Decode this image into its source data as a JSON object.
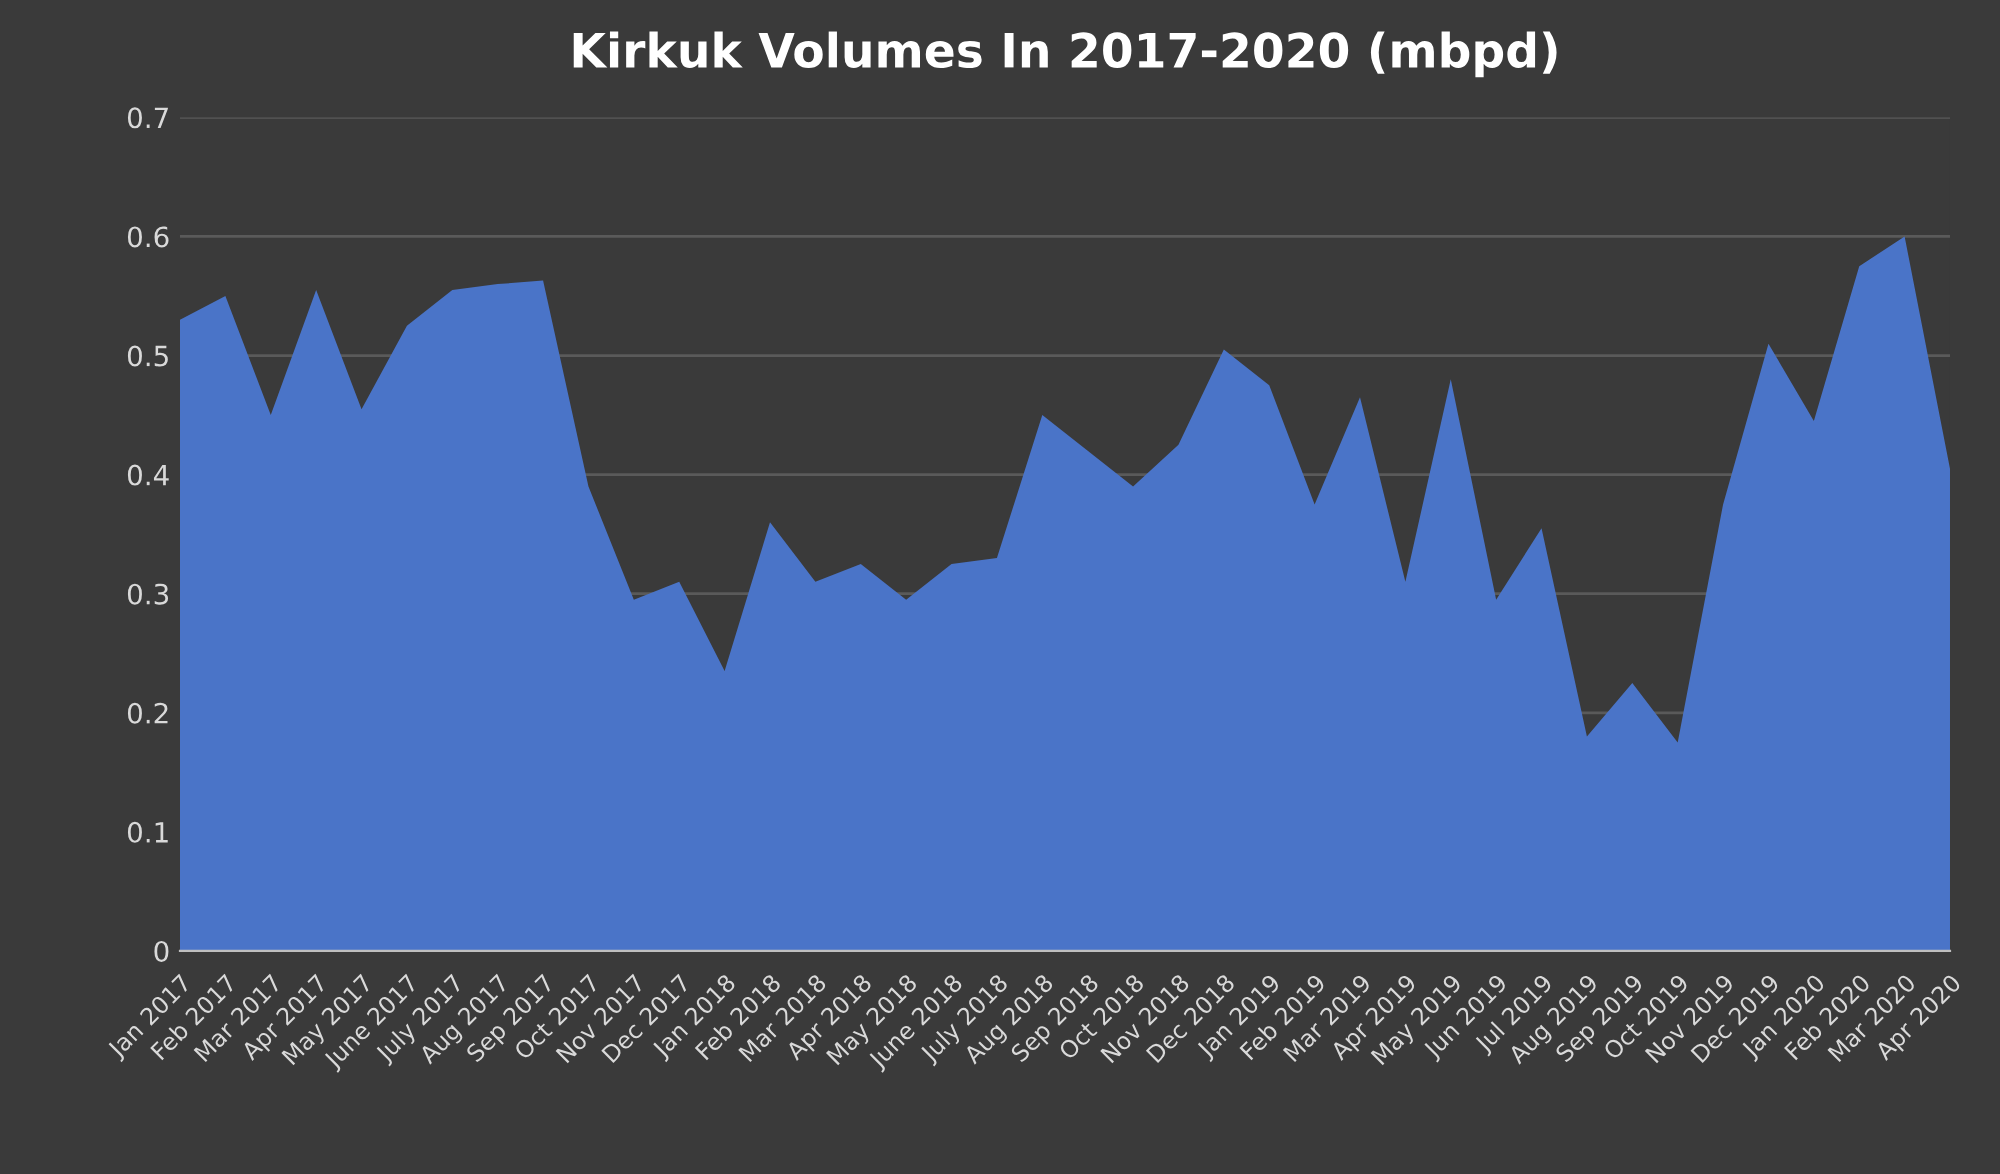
{
  "chart_data": {
    "type": "area",
    "title": "Kirkuk Volumes In 2017-2020 (mbpd)",
    "categories": [
      "Jan 2017",
      "Feb 2017",
      "Mar 2017",
      "Apr 2017",
      "May 2017",
      "June 2017",
      "July 2017",
      "Aug 2017",
      "Sep 2017",
      "Oct 2017",
      "Nov 2017",
      "Dec 2017",
      "Jan 2018",
      "Feb 2018",
      "Mar 2018",
      "Apr 2018",
      "May 2018",
      "June 2018",
      "July 2018",
      "Aug 2018",
      "Sep 2018",
      "Oct 2018",
      "Nov 2018",
      "Dec 2018",
      "Jan 2019",
      "Feb 2019",
      "Mar 2019",
      "Apr 2019",
      "May 2019",
      "Jun 2019",
      "Jul 2019",
      "Aug 2019",
      "Sep 2019",
      "Oct 2019",
      "Nov 2019",
      "Dec 2019",
      "Jan 2020",
      "Feb 2020",
      "Mar 2020",
      "Apr 2020"
    ],
    "series": [
      {
        "color": "#4a74c8",
        "values": [
          0.53,
          0.55,
          0.45,
          0.555,
          0.455,
          0.525,
          0.555,
          0.56,
          0.563,
          0.39,
          0.295,
          0.31,
          0.235,
          0.36,
          0.31,
          0.325,
          0.295,
          0.325,
          0.33,
          0.45,
          0.42,
          0.39,
          0.425,
          0.505,
          0.475,
          0.375,
          0.465,
          0.31,
          0.48,
          0.295,
          0.355,
          0.18,
          0.225,
          0.175,
          0.375,
          0.51,
          0.445,
          0.575,
          0.6,
          0.405
        ]
      }
    ],
    "ylim": [
      0,
      0.7
    ],
    "yticks": [
      0,
      0.1,
      0.2,
      0.3,
      0.4,
      0.5,
      0.6,
      0.7
    ],
    "grid": "y"
  }
}
